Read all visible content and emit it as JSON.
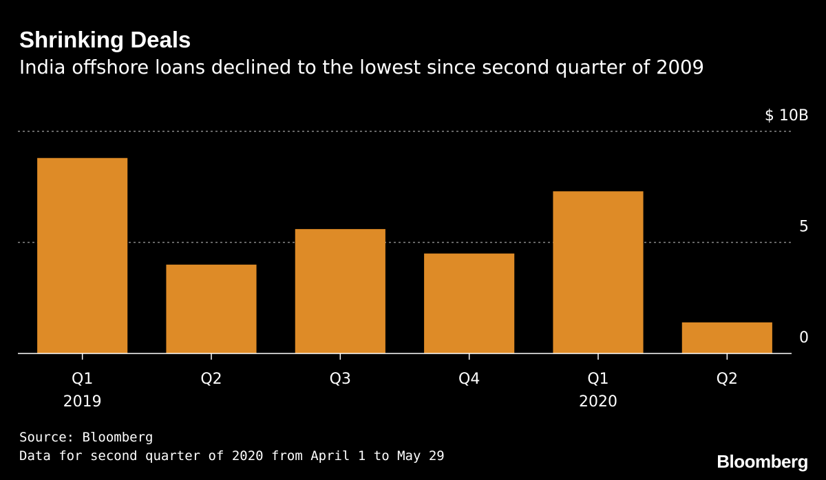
{
  "header": {
    "title": "Shrinking Deals",
    "subtitle": "India offshore loans declined to the lowest since second quarter of 2009"
  },
  "chart_data": {
    "type": "bar",
    "title": "Shrinking Deals",
    "subtitle": "India offshore loans declined to the lowest since second quarter of 2009",
    "categories": [
      "Q1",
      "Q2",
      "Q3",
      "Q4",
      "Q1",
      "Q2"
    ],
    "year_labels": [
      "2019",
      "",
      "",
      "",
      "2020",
      ""
    ],
    "values": [
      8.8,
      4.0,
      5.6,
      4.5,
      7.3,
      1.4
    ],
    "ylim": [
      0,
      10
    ],
    "yticks": [
      {
        "value": 10,
        "label": "$ 10B"
      },
      {
        "value": 5,
        "label": "5"
      },
      {
        "value": 0,
        "label": "0"
      }
    ],
    "xlabel": "",
    "ylabel": "",
    "bar_color": "#de8b27",
    "grid": true,
    "axis_side": "right"
  },
  "footer": {
    "source": "Source: Bloomberg",
    "note": "Data for second quarter of 2020 from April 1 to May 29",
    "brand": "Bloomberg"
  },
  "colors": {
    "background": "#000000",
    "text": "#ffffff",
    "bar": "#de8b27",
    "grid": "#8a8a8a"
  }
}
